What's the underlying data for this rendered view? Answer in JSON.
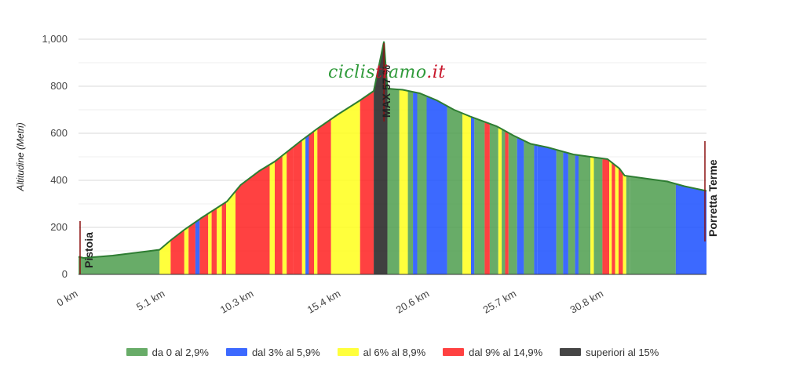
{
  "chart_data": {
    "type": "area",
    "ylabel": "Altitudine (Metri)",
    "xlabel": "",
    "ylim": [
      0,
      1000
    ],
    "xlim": [
      0,
      36.8
    ],
    "y_ticks": [
      "0",
      "200",
      "400",
      "600",
      "800",
      "1,000"
    ],
    "x_ticks": [
      {
        "x": 0,
        "label": "0 km"
      },
      {
        "x": 5.1,
        "label": "5.1 km"
      },
      {
        "x": 10.3,
        "label": "10.3 km"
      },
      {
        "x": 15.4,
        "label": "15.4 km"
      },
      {
        "x": 20.6,
        "label": "20.6 km"
      },
      {
        "x": 25.7,
        "label": "25.7 km"
      },
      {
        "x": 30.8,
        "label": "30.8 km"
      }
    ],
    "grid": true,
    "legend_position": "bottom",
    "annotations": {
      "start": "Pistoia",
      "end": "Porretta Terme",
      "max": "MAX 57 %"
    },
    "logo_text": {
      "part1": "ciclis",
      "part2": "amo",
      "part3": ".it",
      "full": "ciclistiamo.it"
    },
    "categories": [
      {
        "name": "da 0 al 2,9%",
        "color": "#4e9d4e"
      },
      {
        "name": "dal 3% al 5,9%",
        "color": "#1a4fff"
      },
      {
        "name": "al 6% al 8,9%",
        "color": "#ffff1a"
      },
      {
        "name": "dal 9% al 14,9%",
        "color": "#ff2020"
      },
      {
        "name": "superiori al 15%",
        "color": "#252525"
      }
    ],
    "profile": [
      [
        0,
        75
      ],
      [
        0.3,
        70
      ],
      [
        2,
        80
      ],
      [
        4,
        98
      ],
      [
        4.75,
        105
      ],
      [
        5.4,
        145
      ],
      [
        6.2,
        190
      ],
      [
        7.2,
        240
      ],
      [
        8.7,
        310
      ],
      [
        9.5,
        380
      ],
      [
        10.6,
        440
      ],
      [
        11.5,
        480
      ],
      [
        12.9,
        560
      ],
      [
        14,
        620
      ],
      [
        15.2,
        680
      ],
      [
        16.5,
        740
      ],
      [
        17.3,
        780
      ],
      [
        17.9,
        990
      ],
      [
        18.1,
        790
      ],
      [
        19,
        785
      ],
      [
        20,
        770
      ],
      [
        21,
        740
      ],
      [
        22,
        700
      ],
      [
        23,
        670
      ],
      [
        24.5,
        630
      ],
      [
        25.5,
        590
      ],
      [
        26.5,
        555
      ],
      [
        27.5,
        540
      ],
      [
        29,
        510
      ],
      [
        30,
        500
      ],
      [
        31,
        490
      ],
      [
        31.7,
        450
      ],
      [
        32,
        420
      ],
      [
        33.5,
        405
      ],
      [
        34.5,
        395
      ],
      [
        35.5,
        375
      ],
      [
        36.8,
        355
      ]
    ],
    "segments": [
      [
        0,
        4.75,
        0
      ],
      [
        4.75,
        5.4,
        2
      ],
      [
        5.4,
        6.2,
        3
      ],
      [
        6.2,
        6.45,
        2
      ],
      [
        6.45,
        6.85,
        3
      ],
      [
        6.85,
        7.1,
        1
      ],
      [
        7.1,
        7.6,
        3
      ],
      [
        7.6,
        7.8,
        2
      ],
      [
        7.8,
        8.1,
        3
      ],
      [
        8.1,
        8.4,
        2
      ],
      [
        8.4,
        8.65,
        3
      ],
      [
        8.65,
        9.2,
        2
      ],
      [
        9.2,
        11.2,
        3
      ],
      [
        11.2,
        11.5,
        2
      ],
      [
        11.5,
        11.95,
        3
      ],
      [
        11.95,
        12.2,
        2
      ],
      [
        12.2,
        12.6,
        3
      ],
      [
        12.6,
        13.1,
        3
      ],
      [
        13.1,
        13.3,
        2
      ],
      [
        13.3,
        13.5,
        1
      ],
      [
        13.5,
        13.8,
        3
      ],
      [
        13.8,
        14.0,
        2
      ],
      [
        14.0,
        14.8,
        3
      ],
      [
        14.8,
        16.5,
        2
      ],
      [
        16.5,
        17.3,
        3
      ],
      [
        17.3,
        18.1,
        4
      ],
      [
        18.1,
        18.8,
        0
      ],
      [
        18.8,
        19.3,
        2
      ],
      [
        19.3,
        19.6,
        0
      ],
      [
        19.6,
        19.85,
        1
      ],
      [
        19.85,
        20.4,
        0
      ],
      [
        20.4,
        21.6,
        1
      ],
      [
        21.6,
        22.5,
        0
      ],
      [
        22.5,
        23.0,
        2
      ],
      [
        23.0,
        23.2,
        1
      ],
      [
        23.2,
        23.8,
        0
      ],
      [
        23.8,
        24.1,
        3
      ],
      [
        24.1,
        24.6,
        0
      ],
      [
        24.6,
        24.8,
        2
      ],
      [
        24.8,
        25.0,
        0
      ],
      [
        25.0,
        25.2,
        3
      ],
      [
        25.2,
        25.7,
        0
      ],
      [
        25.7,
        26.1,
        1
      ],
      [
        26.1,
        26.7,
        0
      ],
      [
        26.7,
        26.9,
        1
      ],
      [
        26.9,
        28.0,
        1
      ],
      [
        28.0,
        28.4,
        0
      ],
      [
        28.4,
        28.7,
        1
      ],
      [
        28.7,
        29.1,
        0
      ],
      [
        29.1,
        29.3,
        1
      ],
      [
        29.3,
        30.0,
        0
      ],
      [
        30.0,
        30.2,
        2
      ],
      [
        30.2,
        30.7,
        0
      ],
      [
        30.7,
        31.1,
        3
      ],
      [
        31.1,
        31.25,
        2
      ],
      [
        31.25,
        31.45,
        3
      ],
      [
        31.45,
        31.65,
        2
      ],
      [
        31.65,
        31.9,
        3
      ],
      [
        31.9,
        32.1,
        2
      ],
      [
        32.1,
        32.3,
        0
      ],
      [
        32.3,
        35.0,
        0
      ],
      [
        35.0,
        36.8,
        1
      ]
    ]
  }
}
